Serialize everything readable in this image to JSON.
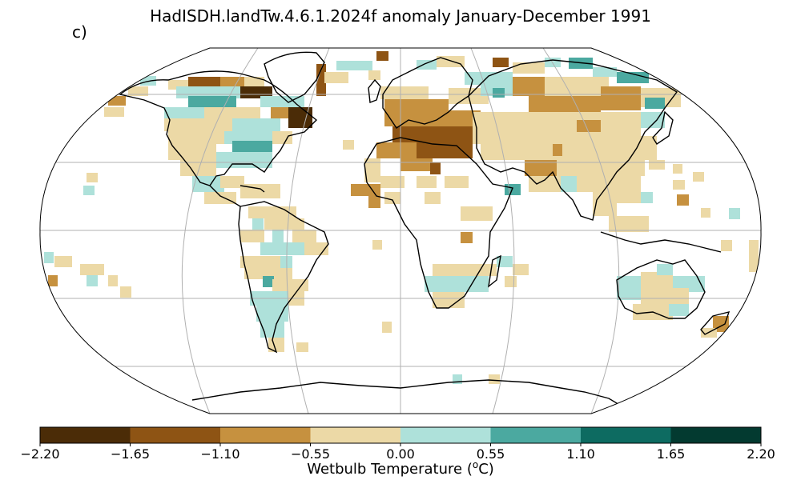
{
  "title": "HadISDH.landTw.4.6.1.2024f anomaly January-December 1991",
  "panel_label": "c)",
  "colorbar": {
    "ticks": [
      "−2.20",
      "−1.65",
      "−1.10",
      "−0.55",
      "0.00",
      "0.55",
      "1.10",
      "1.65",
      "2.20"
    ],
    "colors": [
      "#4b2c07",
      "#8e5414",
      "#c6913f",
      "#ecd9a6",
      "#aee1da",
      "#4ba9a0",
      "#0d6b61",
      "#033a30"
    ],
    "label_main": "Wetbulb Temperature (",
    "label_sup": "o",
    "label_unit": "C)"
  }
}
